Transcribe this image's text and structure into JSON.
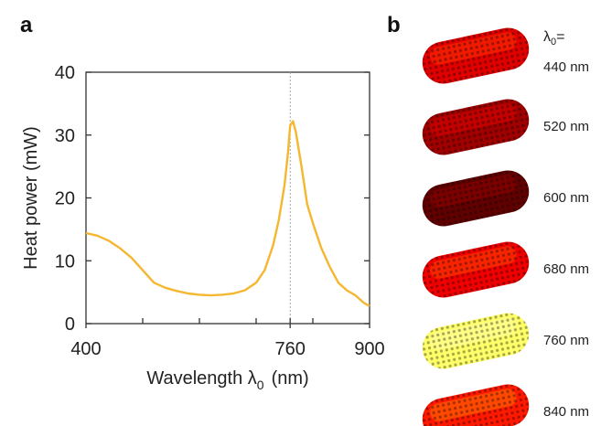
{
  "figure": {
    "panel_a_letter": "a",
    "panel_b_letter": "b",
    "panel_b_header_symbol": "λ",
    "panel_b_header_sub": "0",
    "panel_b_header_suffix": "="
  },
  "chart_data": [
    {
      "type": "line",
      "title": "",
      "xlabel_main": "Wavelength λ",
      "xlabel_sub": "0",
      "xlabel_unit": "(nm)",
      "ylabel": "Heat power  (mW)",
      "xlim": [
        400,
        900
      ],
      "ylim": [
        0,
        40
      ],
      "x_tick_labels": [
        "400",
        "760",
        "900"
      ],
      "x_tick_label_values": [
        400,
        760,
        900
      ],
      "x_minor_tick_values": [
        500,
        600,
        700,
        800
      ],
      "y_tick_labels": [
        "0",
        "10",
        "20",
        "30",
        "40"
      ],
      "y_tick_values": [
        0,
        10,
        20,
        30,
        40
      ],
      "reference_line_x": 760,
      "line_color": "#f5b630",
      "grid": false,
      "series": [
        {
          "x": [
            400,
            420,
            440,
            460,
            480,
            500,
            520,
            540,
            560,
            580,
            600,
            620,
            640,
            660,
            680,
            700,
            715,
            730,
            740,
            750,
            756,
            760,
            765,
            770,
            780,
            790,
            800,
            815,
            830,
            845,
            860,
            875,
            890,
            900
          ],
          "y": [
            14.4,
            14.0,
            13.2,
            12.0,
            10.5,
            8.5,
            6.5,
            5.7,
            5.2,
            4.8,
            4.6,
            4.5,
            4.6,
            4.8,
            5.3,
            6.5,
            8.5,
            12.5,
            16.5,
            22.0,
            27.0,
            31.5,
            32.2,
            30.5,
            25.0,
            19.0,
            16.0,
            12.0,
            9.0,
            6.5,
            5.3,
            4.5,
            3.3,
            2.8
          ]
        }
      ]
    },
    {
      "type": "image_stack",
      "colormap_note": "hot",
      "items": [
        {
          "label": "440 nm",
          "heat": 0.42
        },
        {
          "label": "520 nm",
          "heat": 0.3
        },
        {
          "label": "600 nm",
          "heat": 0.18
        },
        {
          "label": "680 nm",
          "heat": 0.45
        },
        {
          "label": "760 nm",
          "heat": 1.0
        },
        {
          "label": "840 nm",
          "heat": 0.52
        }
      ]
    }
  ]
}
